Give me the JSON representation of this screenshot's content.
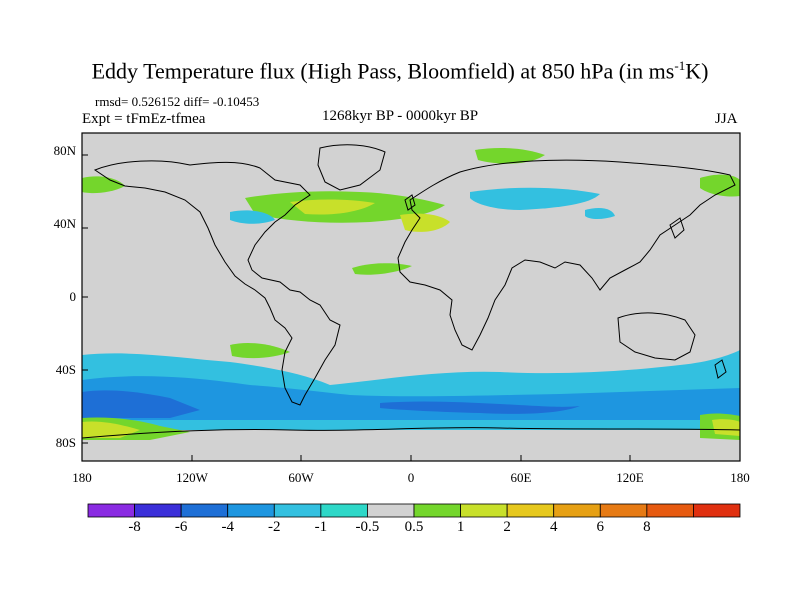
{
  "title": {
    "main": "Eddy Temperature flux (High Pass, Bloomfield) at 850 hPa (in ms",
    "sup": "-1",
    "tail": "K)"
  },
  "stats": "rmsd= 0.526152 diff= -0.10453",
  "expt": "Expt = tFmEz-tfmea",
  "period": "1268kyr BP - 0000kyr BP",
  "season": "JJA",
  "axes": {
    "lat_labels": [
      "80N",
      "40N",
      "0",
      "40S",
      "80S"
    ],
    "lon_labels": [
      "180",
      "120W",
      "60W",
      "0",
      "60E",
      "120E",
      "180"
    ]
  },
  "colorbar": {
    "colors": [
      "#8a2be2",
      "#3b2fd9",
      "#1e6fd6",
      "#1e96e0",
      "#33c0e0",
      "#2ed8c8",
      "#d2d2d2",
      "#74d62c",
      "#c8e02a",
      "#e6c81e",
      "#e6a014",
      "#e67a14",
      "#e65a10",
      "#e03010"
    ],
    "labels": [
      "-8",
      "-6",
      "-4",
      "-2",
      "-1",
      "-0.5",
      "0.5",
      "1",
      "2",
      "4",
      "6",
      "8"
    ]
  },
  "map_colors": {
    "ocean_land_bg": "#d2d2d2",
    "coast": "#000000"
  }
}
